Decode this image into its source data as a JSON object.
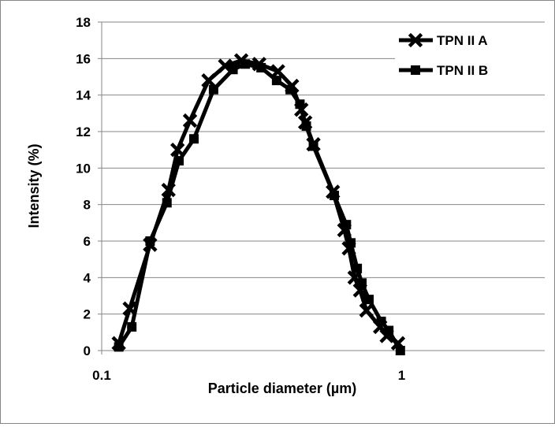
{
  "chart_data": {
    "type": "line",
    "title": "",
    "xlabel": "Particle diameter (µm)",
    "ylabel": "Intensity (%)",
    "xscale": "log",
    "xlim": [
      0.1,
      3
    ],
    "ylim": [
      0,
      18
    ],
    "x_ticks": [
      "0.1",
      "1"
    ],
    "y_ticks": [
      "0",
      "2",
      "4",
      "6",
      "8",
      "10",
      "12",
      "14",
      "16",
      "18"
    ],
    "grid": "horizontal",
    "legend_position": "top-right",
    "series": [
      {
        "name": "TPN II A",
        "marker": "x",
        "color": "#000000",
        "x": [
          0.114,
          0.124,
          0.145,
          0.167,
          0.179,
          0.197,
          0.227,
          0.258,
          0.292,
          0.335,
          0.387,
          0.431,
          0.463,
          0.477,
          0.508,
          0.59,
          0.644,
          0.667,
          0.697,
          0.727,
          0.763,
          0.848,
          0.892,
          0.973
        ],
        "y": [
          0.4,
          2.3,
          5.8,
          8.8,
          11.0,
          12.6,
          14.8,
          15.6,
          15.9,
          15.7,
          15.3,
          14.5,
          13.2,
          12.5,
          11.3,
          8.7,
          6.6,
          5.6,
          4.0,
          3.3,
          2.2,
          1.3,
          0.8,
          0.4
        ]
      },
      {
        "name": "TPN II B",
        "marker": "square",
        "color": "#000000",
        "x": [
          0.114,
          0.126,
          0.145,
          0.165,
          0.181,
          0.203,
          0.236,
          0.274,
          0.301,
          0.34,
          0.383,
          0.425,
          0.458,
          0.481,
          0.508,
          0.596,
          0.654,
          0.677,
          0.711,
          0.737,
          0.778,
          0.855,
          0.906,
          0.99
        ],
        "y": [
          0.2,
          1.3,
          6.0,
          8.1,
          10.4,
          11.6,
          14.3,
          15.4,
          15.7,
          15.5,
          14.8,
          14.3,
          13.5,
          12.3,
          11.2,
          8.5,
          6.9,
          5.9,
          4.5,
          3.7,
          2.8,
          1.6,
          1.1,
          0.0
        ]
      }
    ]
  }
}
